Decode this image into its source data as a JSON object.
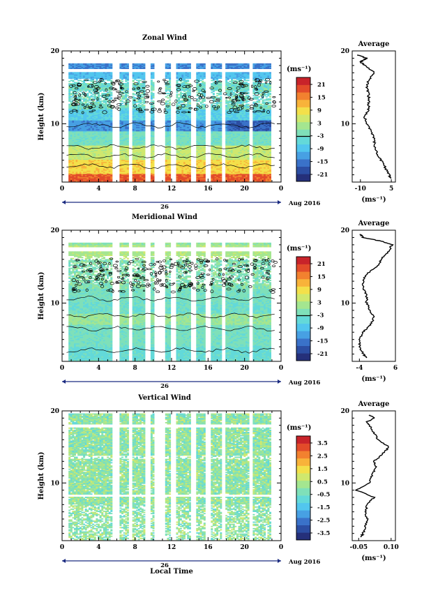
{
  "figure": {
    "x_axis_title": "Local Time",
    "date_day": "26",
    "date_month_year": "Aug 2016",
    "average_title": "Average"
  },
  "chart_data": [
    {
      "type": "heatmap",
      "title": "Zonal Wind",
      "ylabel": "Height (km)",
      "xlabel": "Local Time",
      "xlim": [
        0,
        24
      ],
      "ylim": [
        2,
        20
      ],
      "x_ticks": [
        "0",
        "4",
        "8",
        "12",
        "16",
        "20",
        "0"
      ],
      "y_ticks": [
        "10",
        "20"
      ],
      "colorbar_unit": "(ms⁻¹)",
      "colorbar_ticks": [
        "21",
        "15",
        "9",
        "3",
        "-3",
        "-9",
        "-15",
        "-21"
      ],
      "colorbar_range": [
        -21,
        21
      ],
      "profile": {
        "title": "Average",
        "xlabel": "(ms⁻¹)",
        "x_ticks": [
          "-10",
          "5"
        ],
        "xlim": [
          -14,
          7
        ],
        "heights": [
          2.5,
          3,
          4,
          5,
          6,
          7,
          8,
          9,
          10,
          11,
          12,
          13,
          14,
          15,
          16,
          17,
          18,
          18.5,
          19,
          19.5
        ],
        "values": [
          5,
          4,
          2,
          0,
          -2,
          -3,
          -3.5,
          -5,
          -7,
          -8,
          -6,
          -6,
          -6,
          -7,
          -6,
          -3,
          -8,
          -10,
          -7,
          -12
        ]
      }
    },
    {
      "type": "heatmap",
      "title": "Meridional Wind",
      "ylabel": "Height (km)",
      "xlabel": "Local Time",
      "xlim": [
        0,
        24
      ],
      "ylim": [
        2,
        20
      ],
      "x_ticks": [
        "0",
        "4",
        "8",
        "12",
        "16",
        "20",
        "0"
      ],
      "y_ticks": [
        "10",
        "20"
      ],
      "colorbar_unit": "(ms⁻¹)",
      "colorbar_ticks": [
        "21",
        "15",
        "9",
        "3",
        "-3",
        "-9",
        "-15",
        "-21"
      ],
      "colorbar_range": [
        -21,
        21
      ],
      "profile": {
        "title": "Average",
        "xlabel": "(ms⁻¹)",
        "x_ticks": [
          "-4",
          "6"
        ],
        "xlim": [
          -6,
          6
        ],
        "heights": [
          2.5,
          3,
          4,
          5,
          6,
          7,
          8,
          9,
          10,
          11,
          12,
          13,
          14,
          15,
          16,
          17,
          18,
          18.5,
          19,
          19.5
        ],
        "values": [
          -2,
          -3,
          -4,
          -4,
          -3,
          -1,
          0,
          -1,
          -2,
          -2,
          -3,
          -3,
          -2,
          1,
          2,
          4,
          5,
          2,
          -3,
          -4
        ]
      }
    },
    {
      "type": "heatmap",
      "title": "Vertical Wind",
      "ylabel": "Height (km)",
      "xlabel": "Local Time",
      "xlim": [
        0,
        24
      ],
      "ylim": [
        2,
        20
      ],
      "x_ticks": [
        "0",
        "4",
        "8",
        "12",
        "16",
        "20",
        "0"
      ],
      "y_ticks": [
        "10",
        "20"
      ],
      "colorbar_unit": "(ms⁻¹)",
      "colorbar_ticks": [
        "3.5",
        "2.5",
        "1.5",
        "0.5",
        "-0.5",
        "-1.5",
        "-2.5",
        "-3.5"
      ],
      "colorbar_range": [
        -3.5,
        3.5
      ],
      "profile": {
        "title": "Average",
        "xlabel": "(ms⁻¹)",
        "x_ticks": [
          "-0.05",
          "0.10"
        ],
        "xlim": [
          -0.08,
          0.12
        ],
        "heights": [
          2.5,
          3,
          4,
          5,
          6,
          7,
          8,
          9,
          10,
          11,
          12,
          13,
          14,
          15,
          16,
          17,
          18,
          18.5,
          19,
          19.5
        ],
        "values": [
          -0.04,
          -0.03,
          -0.02,
          -0.01,
          -0.02,
          -0.01,
          0.02,
          -0.06,
          0.0,
          0.01,
          0.03,
          0.02,
          0.06,
          0.09,
          0.04,
          0.02,
          0.0,
          -0.01,
          0.02,
          0.0
        ]
      }
    }
  ]
}
